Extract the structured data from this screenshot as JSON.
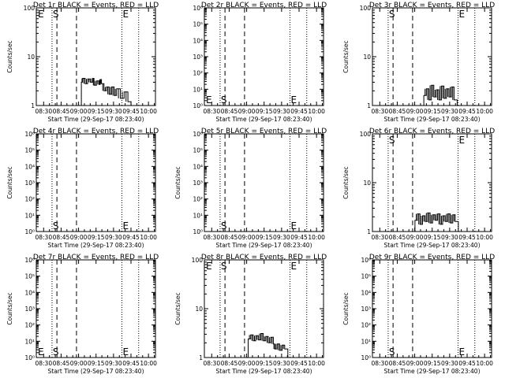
{
  "chart_data": [
    {
      "id": "1",
      "type": "line",
      "title": "Det 1r BLACK = Events, RED = LLD",
      "scale": "log",
      "ylim": [
        1,
        100
      ],
      "ylabel": "Counts/sec",
      "xlabel": "Start Time (29-Sep-17 08:23:40)",
      "ylabels": [
        "1",
        "10",
        "100"
      ],
      "marks": {
        "E": [
          [
            "left",
            "top"
          ],
          [
            "mid_right",
            "top"
          ]
        ],
        "S": [
          [
            "dot_left",
            "top"
          ]
        ]
      },
      "series": [
        {
          "name": "Events",
          "points": [
            [
              0.6,
              3
            ],
            [
              0.62,
              3.6
            ],
            [
              0.66,
              2.8
            ],
            [
              0.7,
              3.5
            ],
            [
              0.74,
              3
            ],
            [
              0.78,
              3.6
            ],
            [
              0.8,
              2.6
            ],
            [
              0.84,
              3.2
            ],
            [
              0.88,
              2.7
            ],
            [
              0.9,
              3.4
            ],
            [
              0.92,
              2.8
            ],
            [
              0.96,
              2
            ],
            [
              1.0,
              2.4
            ],
            [
              1.04,
              1.7
            ],
            [
              1.08,
              2.4
            ],
            [
              1.12,
              1.6
            ],
            [
              1.16,
              2.2
            ],
            [
              1.22,
              1.4
            ],
            [
              1.28,
              1.9
            ],
            [
              1.34,
              1.2
            ]
          ]
        }
      ]
    },
    {
      "id": "2",
      "type": "line",
      "title": "Det 2r BLACK = Events, RED = LLD",
      "scale": "log",
      "ylim": [
        1,
        1000000
      ],
      "ylabel": "",
      "xlabel": "Start Time (29-Sep-17 08:23:40)",
      "ylabels": [
        "10⁰",
        "10¹",
        "10²",
        "10³",
        "10⁴",
        "10⁵",
        "10⁶"
      ],
      "marks": {
        "E": [
          [
            "left",
            "bottom"
          ],
          [
            "mid_right",
            "bottom"
          ]
        ],
        "S": [
          [
            "dot_left",
            "bottom"
          ]
        ]
      },
      "series": []
    },
    {
      "id": "3",
      "type": "line",
      "title": "Det 3r BLACK = Events, RED = LLD",
      "scale": "log",
      "ylim": [
        1,
        100
      ],
      "ylabel": "Counts/sec",
      "xlabel": "Start Time (29-Sep-17 08:23:40)",
      "ylabels": [
        "1",
        "10",
        "100"
      ],
      "marks": {
        "E": [
          [
            "mid_right",
            "top"
          ]
        ],
        "S": [
          [
            "dot_left",
            "top"
          ]
        ]
      },
      "series": [
        {
          "name": "Events",
          "points": [
            [
              0.7,
              1.6
            ],
            [
              0.74,
              2.2
            ],
            [
              0.78,
              1.3
            ],
            [
              0.82,
              2.6
            ],
            [
              0.86,
              1.5
            ],
            [
              0.9,
              2.1
            ],
            [
              0.94,
              1.3
            ],
            [
              0.98,
              2.5
            ],
            [
              1.02,
              1.4
            ],
            [
              1.06,
              2.2
            ],
            [
              1.1,
              1.5
            ],
            [
              1.14,
              2.4
            ],
            [
              1.18,
              1.3
            ]
          ]
        }
      ]
    },
    {
      "id": "4",
      "type": "line",
      "title": "Det 4r BLACK = Events, RED = LLD",
      "scale": "log",
      "ylim": [
        1,
        1000000
      ],
      "ylabel": "Counts/sec",
      "xlabel": "Start Time (29-Sep-17 08:23:40)",
      "ylabels": [
        "10⁰",
        "10¹",
        "10²",
        "10³",
        "10⁴",
        "10⁵",
        "10⁶"
      ],
      "marks": {
        "E": [
          [
            "mid_right",
            "bottom"
          ]
        ],
        "S": [
          [
            "dot_left",
            "bottom"
          ]
        ]
      },
      "series": []
    },
    {
      "id": "5",
      "type": "line",
      "title": "Det 5r BLACK = Events, RED = LLD",
      "scale": "log",
      "ylim": [
        1,
        1000000
      ],
      "ylabel": "Counts/sec",
      "xlabel": "Start Time (29-Sep-17 08:23:40)",
      "ylabels": [
        "10⁰",
        "10¹",
        "10²",
        "10³",
        "10⁴",
        "10⁵",
        "10⁶"
      ],
      "marks": {
        "E": [
          [
            "mid_right",
            "bottom"
          ]
        ],
        "S": [
          [
            "dot_left",
            "bottom"
          ]
        ]
      },
      "series": []
    },
    {
      "id": "6",
      "type": "line",
      "title": "Det 6r BLACK = Events, RED = LLD",
      "scale": "log",
      "ylim": [
        1,
        100
      ],
      "ylabel": "Counts/sec",
      "xlabel": "Start Time (29-Sep-17 08:23:40)",
      "ylabels": [
        "1",
        "10",
        "100"
      ],
      "marks": {
        "E": [
          [
            "mid_right",
            "top"
          ]
        ],
        "S": [
          [
            "dot_left",
            "top"
          ]
        ]
      },
      "series": [
        {
          "name": "Events",
          "points": [
            [
              0.56,
              1.7
            ],
            [
              0.6,
              2.3
            ],
            [
              0.64,
              1.4
            ],
            [
              0.68,
              2.1
            ],
            [
              0.72,
              1.6
            ],
            [
              0.76,
              2.4
            ],
            [
              0.8,
              1.5
            ],
            [
              0.84,
              2.2
            ],
            [
              0.88,
              1.7
            ],
            [
              0.92,
              2.3
            ],
            [
              0.96,
              1.4
            ],
            [
              1.0,
              2.1
            ],
            [
              1.04,
              1.6
            ],
            [
              1.08,
              2.3
            ],
            [
              1.12,
              1.5
            ],
            [
              1.16,
              2.2
            ],
            [
              1.2,
              1.6
            ]
          ]
        }
      ]
    },
    {
      "id": "7",
      "type": "line",
      "title": "Det 7r BLACK = Events, RED = LLD",
      "scale": "log",
      "ylim": [
        1,
        1000000
      ],
      "ylabel": "Counts/sec",
      "xlabel": "Start Time (29-Sep-17 08:23:40)",
      "ylabels": [
        "10⁰",
        "10¹",
        "10²",
        "10³",
        "10⁴",
        "10⁵",
        "10⁶"
      ],
      "marks": {
        "E": [
          [
            "left",
            "bottom"
          ],
          [
            "mid_right",
            "bottom"
          ]
        ],
        "S": [
          [
            "dot_left",
            "bottom"
          ]
        ]
      },
      "series": []
    },
    {
      "id": "8",
      "type": "line",
      "title": "Det 8r BLACK = Events, RED = LLD",
      "scale": "log",
      "ylim": [
        1,
        100
      ],
      "ylabel": "Counts/sec",
      "xlabel": "Start Time (29-Sep-17 08:23:40)",
      "ylabels": [
        "1",
        "10",
        "100"
      ],
      "marks": {
        "E": [
          [
            "left",
            "top"
          ],
          [
            "mid_right",
            "top"
          ]
        ],
        "S": [
          [
            "dot_left",
            "top"
          ]
        ]
      },
      "series": [
        {
          "name": "Events",
          "points": [
            [
              0.58,
              2.4
            ],
            [
              0.62,
              2.9
            ],
            [
              0.66,
              2.2
            ],
            [
              0.7,
              2.8
            ],
            [
              0.74,
              2.3
            ],
            [
              0.78,
              3.1
            ],
            [
              0.82,
              2.2
            ],
            [
              0.86,
              2.7
            ],
            [
              0.9,
              2.0
            ],
            [
              0.94,
              2.6
            ],
            [
              0.98,
              1.9
            ],
            [
              1.0,
              1.5
            ],
            [
              1.04,
              1.9
            ],
            [
              1.08,
              1.4
            ],
            [
              1.12,
              1.8
            ],
            [
              1.16,
              1.5
            ]
          ]
        }
      ]
    },
    {
      "id": "9",
      "type": "line",
      "title": "Det 9r BLACK = Events, RED = LLD",
      "scale": "log",
      "ylim": [
        1,
        1000000
      ],
      "ylabel": "Counts/sec",
      "xlabel": "Start Time (29-Sep-17 08:23:40)",
      "ylabels": [
        "10⁰",
        "10¹",
        "10²",
        "10³",
        "10⁴",
        "10⁵",
        "10⁶"
      ],
      "marks": {
        "E": [
          [
            "mid_right",
            "bottom"
          ]
        ],
        "S": [
          [
            "dot_left",
            "bottom"
          ]
        ]
      },
      "series": []
    }
  ],
  "x_axis": {
    "range_hours": [
      8.395,
      10.1
    ],
    "tick_hours": [
      8.5,
      8.75,
      9.0,
      9.25,
      9.5,
      9.75,
      10.0
    ],
    "tick_labels": [
      "08:30",
      "08:45",
      "09:00",
      "09:15",
      "09:30",
      "09:45",
      "10:00"
    ]
  },
  "vlines": {
    "dot_left": 8.62,
    "dash_left": 8.69,
    "dash_mid": 8.97,
    "dot_mid": 9.62,
    "dot_right": 9.86
  },
  "colors": {
    "axis": "#000000",
    "background": "#ffffff",
    "events": "#000000"
  }
}
